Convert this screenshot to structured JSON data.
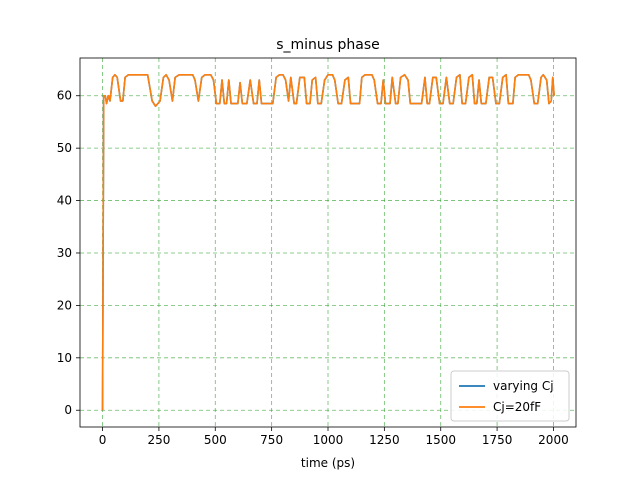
{
  "chart_data": {
    "type": "line",
    "title": "s_minus phase",
    "xlabel": "time (ps)",
    "ylabel": "",
    "xlim": [
      -100,
      2100
    ],
    "ylim": [
      -3.2,
      67.2
    ],
    "xticks": [
      0,
      250,
      500,
      750,
      1000,
      1250,
      1500,
      1750,
      2000
    ],
    "yticks": [
      0,
      10,
      20,
      30,
      40,
      50,
      60
    ],
    "grid": true,
    "grid_color": "#2ca02c",
    "legend_position": "lower-right",
    "series": [
      {
        "name": "varying Cj",
        "color": "#1f77b4",
        "points": [
          [
            0,
            0
          ],
          [
            5,
            60
          ],
          [
            12,
            60
          ],
          [
            18,
            58.5
          ],
          [
            25,
            60
          ],
          [
            33,
            59
          ],
          [
            45,
            63.5
          ],
          [
            55,
            64
          ],
          [
            65,
            63.5
          ],
          [
            80,
            59
          ],
          [
            90,
            59
          ],
          [
            100,
            63.5
          ],
          [
            115,
            64
          ],
          [
            200,
            64
          ],
          [
            220,
            59
          ],
          [
            235,
            58
          ],
          [
            255,
            59
          ],
          [
            270,
            63.5
          ],
          [
            282,
            64
          ],
          [
            295,
            63
          ],
          [
            310,
            59
          ],
          [
            322,
            63.5
          ],
          [
            340,
            64
          ],
          [
            400,
            64
          ],
          [
            410,
            63
          ],
          [
            425,
            59
          ],
          [
            440,
            63.5
          ],
          [
            455,
            64
          ],
          [
            480,
            64
          ],
          [
            492,
            63
          ],
          [
            505,
            58.5
          ],
          [
            520,
            58.5
          ],
          [
            530,
            63
          ],
          [
            540,
            58.5
          ],
          [
            550,
            58.5
          ],
          [
            560,
            63
          ],
          [
            570,
            58.5
          ],
          [
            600,
            58.5
          ],
          [
            610,
            62.5
          ],
          [
            620,
            58.5
          ],
          [
            640,
            58.5
          ],
          [
            655,
            63
          ],
          [
            670,
            58.5
          ],
          [
            685,
            58.5
          ],
          [
            695,
            63
          ],
          [
            705,
            58.5
          ],
          [
            755,
            58.5
          ],
          [
            770,
            63.5
          ],
          [
            785,
            64
          ],
          [
            800,
            64
          ],
          [
            812,
            63
          ],
          [
            825,
            59
          ],
          [
            835,
            63.5
          ],
          [
            850,
            58.5
          ],
          [
            860,
            58.5
          ],
          [
            875,
            63.5
          ],
          [
            895,
            63.5
          ],
          [
            905,
            58.5
          ],
          [
            920,
            58.5
          ],
          [
            930,
            63
          ],
          [
            945,
            63.5
          ],
          [
            955,
            58.5
          ],
          [
            970,
            58.5
          ],
          [
            985,
            63
          ],
          [
            1000,
            64
          ],
          [
            1020,
            64
          ],
          [
            1030,
            63
          ],
          [
            1045,
            58.5
          ],
          [
            1060,
            58.5
          ],
          [
            1075,
            63
          ],
          [
            1090,
            63.5
          ],
          [
            1100,
            58.5
          ],
          [
            1140,
            58.5
          ],
          [
            1150,
            63.5
          ],
          [
            1165,
            64
          ],
          [
            1195,
            64
          ],
          [
            1205,
            63
          ],
          [
            1220,
            58.5
          ],
          [
            1235,
            58.5
          ],
          [
            1245,
            63
          ],
          [
            1255,
            58.5
          ],
          [
            1275,
            58.5
          ],
          [
            1285,
            63.5
          ],
          [
            1300,
            58.5
          ],
          [
            1310,
            58.5
          ],
          [
            1322,
            63.5
          ],
          [
            1340,
            64
          ],
          [
            1355,
            63
          ],
          [
            1365,
            58.5
          ],
          [
            1415,
            58.5
          ],
          [
            1430,
            63.5
          ],
          [
            1440,
            58.5
          ],
          [
            1450,
            58.5
          ],
          [
            1465,
            63.5
          ],
          [
            1480,
            63.5
          ],
          [
            1495,
            58.5
          ],
          [
            1510,
            58.5
          ],
          [
            1525,
            63.5
          ],
          [
            1540,
            58.5
          ],
          [
            1555,
            58.5
          ],
          [
            1570,
            63.5
          ],
          [
            1585,
            64
          ],
          [
            1595,
            58.5
          ],
          [
            1610,
            58.5
          ],
          [
            1625,
            63.5
          ],
          [
            1640,
            64
          ],
          [
            1650,
            58.5
          ],
          [
            1660,
            58.5
          ],
          [
            1670,
            63
          ],
          [
            1680,
            58.5
          ],
          [
            1700,
            58.5
          ],
          [
            1715,
            63.5
          ],
          [
            1730,
            63.5
          ],
          [
            1745,
            58.5
          ],
          [
            1760,
            58.5
          ],
          [
            1775,
            63.5
          ],
          [
            1790,
            64
          ],
          [
            1800,
            58.5
          ],
          [
            1820,
            58.5
          ],
          [
            1830,
            63.5
          ],
          [
            1845,
            64
          ],
          [
            1890,
            64
          ],
          [
            1900,
            63
          ],
          [
            1915,
            58.5
          ],
          [
            1930,
            58.5
          ],
          [
            1945,
            63.5
          ],
          [
            1955,
            64
          ],
          [
            1970,
            63
          ],
          [
            1980,
            58.5
          ],
          [
            1990,
            59
          ],
          [
            1997,
            63.5
          ],
          [
            2003,
            60
          ]
        ]
      },
      {
        "name": "Cj=20fF",
        "color": "#ff7f0e",
        "points": [
          [
            0,
            0
          ],
          [
            5,
            60
          ],
          [
            12,
            60
          ],
          [
            18,
            58.5
          ],
          [
            25,
            60
          ],
          [
            33,
            59
          ],
          [
            45,
            63.5
          ],
          [
            55,
            64
          ],
          [
            65,
            63.5
          ],
          [
            80,
            59
          ],
          [
            90,
            59
          ],
          [
            100,
            63.5
          ],
          [
            115,
            64
          ],
          [
            200,
            64
          ],
          [
            220,
            59
          ],
          [
            235,
            58
          ],
          [
            255,
            59
          ],
          [
            270,
            63.5
          ],
          [
            282,
            64
          ],
          [
            295,
            63
          ],
          [
            310,
            59
          ],
          [
            322,
            63.5
          ],
          [
            340,
            64
          ],
          [
            400,
            64
          ],
          [
            410,
            63
          ],
          [
            425,
            59
          ],
          [
            440,
            63.5
          ],
          [
            455,
            64
          ],
          [
            480,
            64
          ],
          [
            492,
            63
          ],
          [
            505,
            58.5
          ],
          [
            520,
            58.5
          ],
          [
            530,
            63
          ],
          [
            540,
            58.5
          ],
          [
            550,
            58.5
          ],
          [
            560,
            63
          ],
          [
            570,
            58.5
          ],
          [
            600,
            58.5
          ],
          [
            610,
            62.5
          ],
          [
            620,
            58.5
          ],
          [
            640,
            58.5
          ],
          [
            655,
            63
          ],
          [
            670,
            58.5
          ],
          [
            685,
            58.5
          ],
          [
            695,
            63
          ],
          [
            705,
            58.5
          ],
          [
            755,
            58.5
          ],
          [
            770,
            63.5
          ],
          [
            785,
            64
          ],
          [
            800,
            64
          ],
          [
            812,
            63
          ],
          [
            825,
            59
          ],
          [
            835,
            63.5
          ],
          [
            850,
            58.5
          ],
          [
            860,
            58.5
          ],
          [
            875,
            63.5
          ],
          [
            895,
            63.5
          ],
          [
            905,
            58.5
          ],
          [
            920,
            58.5
          ],
          [
            930,
            63
          ],
          [
            945,
            63.5
          ],
          [
            955,
            58.5
          ],
          [
            970,
            58.5
          ],
          [
            985,
            63
          ],
          [
            1000,
            64
          ],
          [
            1020,
            64
          ],
          [
            1030,
            63
          ],
          [
            1045,
            58.5
          ],
          [
            1060,
            58.5
          ],
          [
            1075,
            63
          ],
          [
            1090,
            63.5
          ],
          [
            1100,
            58.5
          ],
          [
            1140,
            58.5
          ],
          [
            1150,
            63.5
          ],
          [
            1165,
            64
          ],
          [
            1195,
            64
          ],
          [
            1205,
            63
          ],
          [
            1220,
            58.5
          ],
          [
            1235,
            58.5
          ],
          [
            1245,
            63
          ],
          [
            1255,
            58.5
          ],
          [
            1275,
            58.5
          ],
          [
            1285,
            63.5
          ],
          [
            1300,
            58.5
          ],
          [
            1310,
            58.5
          ],
          [
            1322,
            63.5
          ],
          [
            1340,
            64
          ],
          [
            1355,
            63
          ],
          [
            1365,
            58.5
          ],
          [
            1415,
            58.5
          ],
          [
            1430,
            63.5
          ],
          [
            1440,
            58.5
          ],
          [
            1450,
            58.5
          ],
          [
            1465,
            63.5
          ],
          [
            1480,
            63.5
          ],
          [
            1495,
            58.5
          ],
          [
            1510,
            58.5
          ],
          [
            1525,
            63.5
          ],
          [
            1540,
            58.5
          ],
          [
            1555,
            58.5
          ],
          [
            1570,
            63.5
          ],
          [
            1585,
            64
          ],
          [
            1595,
            58.5
          ],
          [
            1610,
            58.5
          ],
          [
            1625,
            63.5
          ],
          [
            1640,
            64
          ],
          [
            1650,
            58.5
          ],
          [
            1660,
            58.5
          ],
          [
            1670,
            63
          ],
          [
            1680,
            58.5
          ],
          [
            1700,
            58.5
          ],
          [
            1715,
            63.5
          ],
          [
            1730,
            63.5
          ],
          [
            1745,
            58.5
          ],
          [
            1760,
            58.5
          ],
          [
            1775,
            63.5
          ],
          [
            1790,
            64
          ],
          [
            1800,
            58.5
          ],
          [
            1820,
            58.5
          ],
          [
            1830,
            63.5
          ],
          [
            1845,
            64
          ],
          [
            1890,
            64
          ],
          [
            1900,
            63
          ],
          [
            1915,
            58.5
          ],
          [
            1930,
            58.5
          ],
          [
            1945,
            63.5
          ],
          [
            1955,
            64
          ],
          [
            1970,
            63
          ],
          [
            1980,
            58.5
          ],
          [
            1990,
            59
          ],
          [
            1997,
            63.5
          ],
          [
            2003,
            60
          ]
        ]
      }
    ]
  }
}
